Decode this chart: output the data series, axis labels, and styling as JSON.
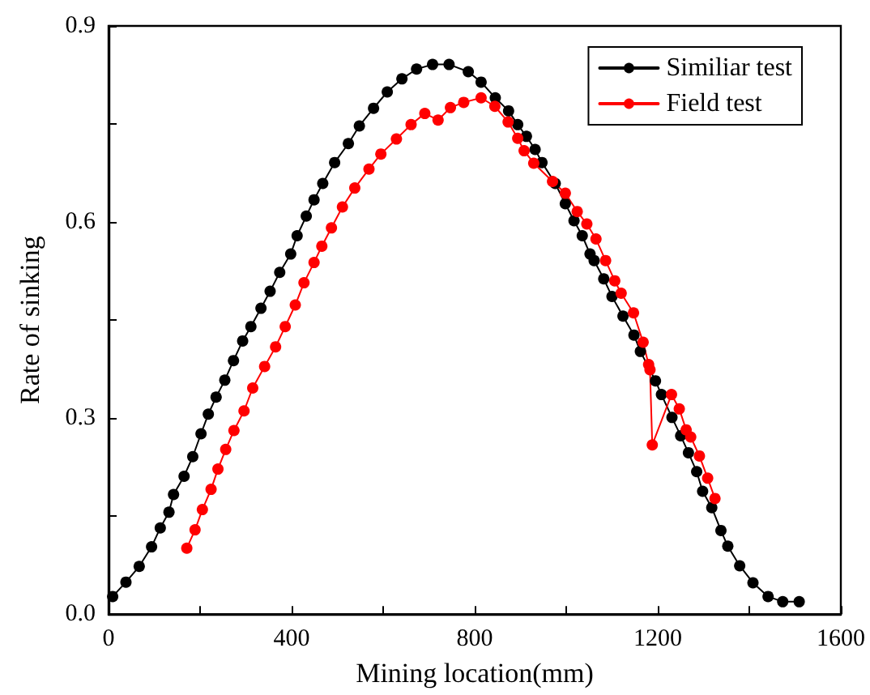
{
  "chart_data": {
    "type": "line",
    "xlabel": "Mining location(mm)",
    "ylabel": "Rate of sinking",
    "xlim": [
      0,
      1600
    ],
    "ylim": [
      0,
      0.9
    ],
    "xticks": [
      0,
      {
        "value": 200,
        "label": null
      },
      400,
      {
        "value": 600,
        "label": null
      },
      800,
      {
        "value": 1000,
        "label": null
      },
      1200,
      {
        "value": 1400,
        "label": null
      },
      1600
    ],
    "yticks": [
      {
        "value": 0,
        "label": "0.0"
      },
      {
        "value": 0.15,
        "label": null
      },
      0.3,
      {
        "value": 0.45,
        "label": null
      },
      0.6,
      {
        "value": 0.75,
        "label": null
      },
      0.9
    ],
    "grid": false,
    "legend": "top right",
    "marker": "circle",
    "line_style": "solid",
    "series": [
      {
        "name": "Similiar test",
        "color": "#000000",
        "x": [
          9,
          38,
          67,
          94,
          113,
          132,
          142,
          165,
          184,
          202,
          218,
          235,
          254,
          273,
          293,
          311,
          333,
          353,
          374,
          398,
          412,
          432,
          449,
          468,
          494,
          524,
          548,
          579,
          609,
          641,
          673,
          708,
          744,
          786,
          814,
          845,
          874,
          894,
          913,
          932,
          947,
          976,
          998,
          1017,
          1035,
          1052,
          1061,
          1082,
          1100,
          1124,
          1148,
          1162,
          1195,
          1208,
          1231,
          1250,
          1267,
          1285,
          1298,
          1318,
          1338,
          1353,
          1379,
          1408,
          1441,
          1473,
          1509
        ],
        "values": [
          0.027,
          0.049,
          0.073,
          0.103,
          0.132,
          0.156,
          0.183,
          0.211,
          0.241,
          0.276,
          0.306,
          0.332,
          0.358,
          0.388,
          0.418,
          0.44,
          0.468,
          0.494,
          0.523,
          0.551,
          0.579,
          0.609,
          0.634,
          0.659,
          0.691,
          0.72,
          0.747,
          0.774,
          0.799,
          0.819,
          0.834,
          0.841,
          0.841,
          0.83,
          0.814,
          0.79,
          0.77,
          0.749,
          0.731,
          0.711,
          0.691,
          0.659,
          0.628,
          0.602,
          0.579,
          0.551,
          0.541,
          0.513,
          0.486,
          0.456,
          0.427,
          0.402,
          0.357,
          0.336,
          0.301,
          0.273,
          0.247,
          0.218,
          0.188,
          0.163,
          0.128,
          0.104,
          0.074,
          0.048,
          0.027,
          0.019,
          0.019
        ]
      },
      {
        "name": "Field test",
        "color": "#ff0000",
        "x": [
          171,
          189,
          205,
          224,
          239,
          256,
          274,
          296,
          315,
          341,
          365,
          386,
          408,
          427,
          449,
          466,
          487,
          511,
          538,
          569,
          595,
          629,
          661,
          691,
          720,
          747,
          776,
          814,
          844,
          873,
          894,
          908,
          929,
          970,
          998,
          1024,
          1045,
          1065,
          1086,
          1106,
          1120,
          1147,
          1168,
          1180,
          1183,
          1188,
          1230,
          1247,
          1262,
          1272,
          1291,
          1309,
          1325
        ],
        "values": [
          0.101,
          0.129,
          0.16,
          0.191,
          0.222,
          0.252,
          0.281,
          0.311,
          0.346,
          0.379,
          0.409,
          0.44,
          0.473,
          0.507,
          0.538,
          0.563,
          0.591,
          0.623,
          0.652,
          0.681,
          0.704,
          0.727,
          0.749,
          0.766,
          0.756,
          0.775,
          0.783,
          0.79,
          0.777,
          0.753,
          0.728,
          0.709,
          0.69,
          0.662,
          0.644,
          0.616,
          0.597,
          0.574,
          0.541,
          0.51,
          0.491,
          0.461,
          0.416,
          0.382,
          0.374,
          0.259,
          0.336,
          0.314,
          0.282,
          0.271,
          0.242,
          0.208,
          0.177
        ]
      }
    ]
  }
}
